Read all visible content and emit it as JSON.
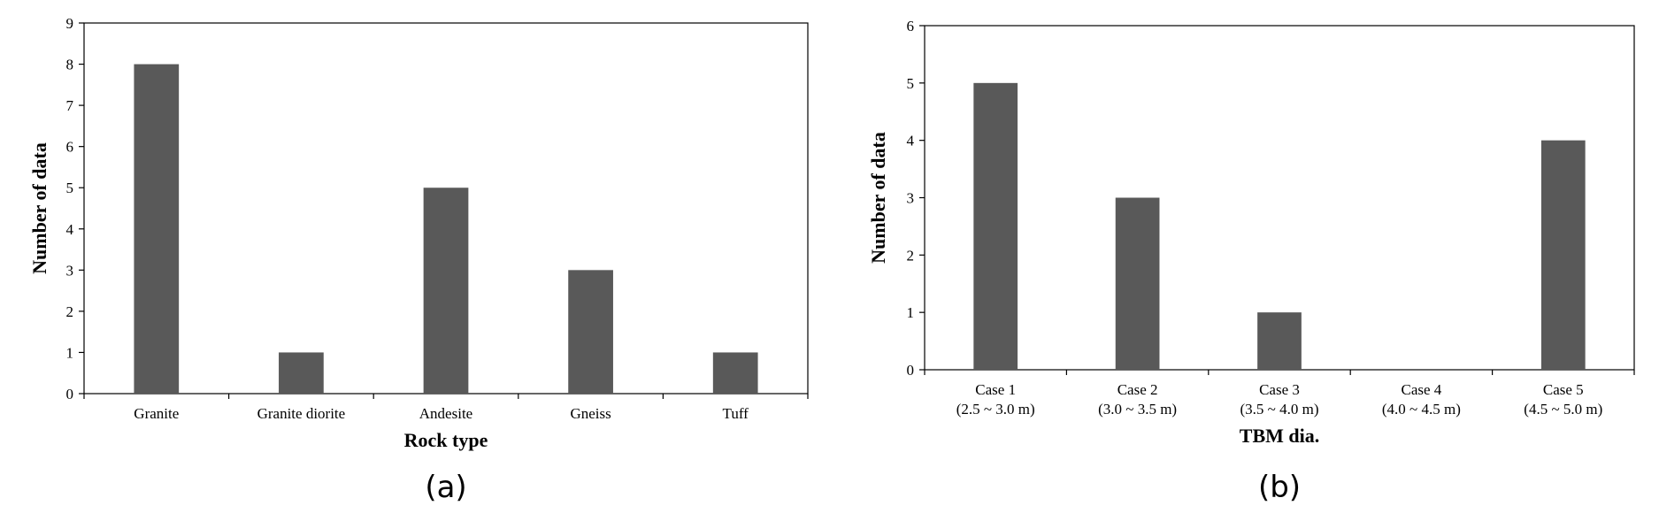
{
  "chart_data": [
    {
      "type": "bar",
      "panel_label": "(a)",
      "categories": [
        [
          "Granite"
        ],
        [
          "Granite diorite"
        ],
        [
          "Andesite"
        ],
        [
          "Gneiss"
        ],
        [
          "Tuff"
        ]
      ],
      "values": [
        8,
        1,
        5,
        3,
        1
      ],
      "xlabel": "Rock type",
      "ylabel": "Number of data",
      "ylim": [
        0,
        9
      ],
      "yticks": [
        0,
        1,
        2,
        3,
        4,
        5,
        6,
        7,
        8,
        9
      ],
      "grid": false,
      "bar_color": "#595959"
    },
    {
      "type": "bar",
      "panel_label": "(b)",
      "categories": [
        [
          "Case 1",
          "(2.5 ~ 3.0 m)"
        ],
        [
          "Case 2",
          "(3.0 ~ 3.5 m)"
        ],
        [
          "Case 3",
          "(3.5 ~ 4.0 m)"
        ],
        [
          "Case 4",
          "(4.0 ~ 4.5 m)"
        ],
        [
          "Case 5",
          "(4.5 ~ 5.0 m)"
        ]
      ],
      "values": [
        5,
        3,
        1,
        0,
        4
      ],
      "xlabel": "TBM dia.",
      "ylabel": "Number of data",
      "ylim": [
        0,
        6
      ],
      "yticks": [
        0,
        1,
        2,
        3,
        4,
        5,
        6
      ],
      "grid": false,
      "bar_color": "#595959"
    }
  ]
}
